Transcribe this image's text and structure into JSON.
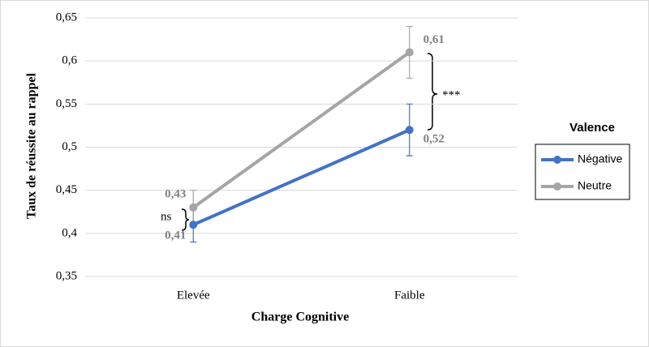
{
  "chart_data": {
    "type": "line",
    "x_label": "Charge Cognitive",
    "y_label": "Taux de réussite au rappel",
    "categories": [
      "Elevée",
      "Faible"
    ],
    "series": [
      {
        "name": "Négative",
        "color": "#4472c4",
        "values": [
          0.41,
          0.52
        ],
        "value_labels": [
          "0,41",
          "0,52"
        ],
        "errors": [
          0.02,
          0.03
        ]
      },
      {
        "name": "Neutre",
        "color": "#a5a5a5",
        "values": [
          0.43,
          0.61
        ],
        "value_labels": [
          "0,43",
          "0,61"
        ],
        "errors": [
          0.02,
          0.03
        ]
      }
    ],
    "ylim": [
      0.35,
      0.65
    ],
    "yticks": [
      {
        "value": 0.35,
        "label": "0,35"
      },
      {
        "value": 0.4,
        "label": "0,4"
      },
      {
        "value": 0.45,
        "label": "0,45"
      },
      {
        "value": 0.5,
        "label": "0,5"
      },
      {
        "value": 0.55,
        "label": "0,55"
      },
      {
        "value": 0.6,
        "label": "0,6"
      },
      {
        "value": 0.65,
        "label": "0,65"
      }
    ],
    "grid": true,
    "legend_title": "Valence",
    "legend_position": "right",
    "annotations": [
      "ns",
      "***"
    ]
  }
}
